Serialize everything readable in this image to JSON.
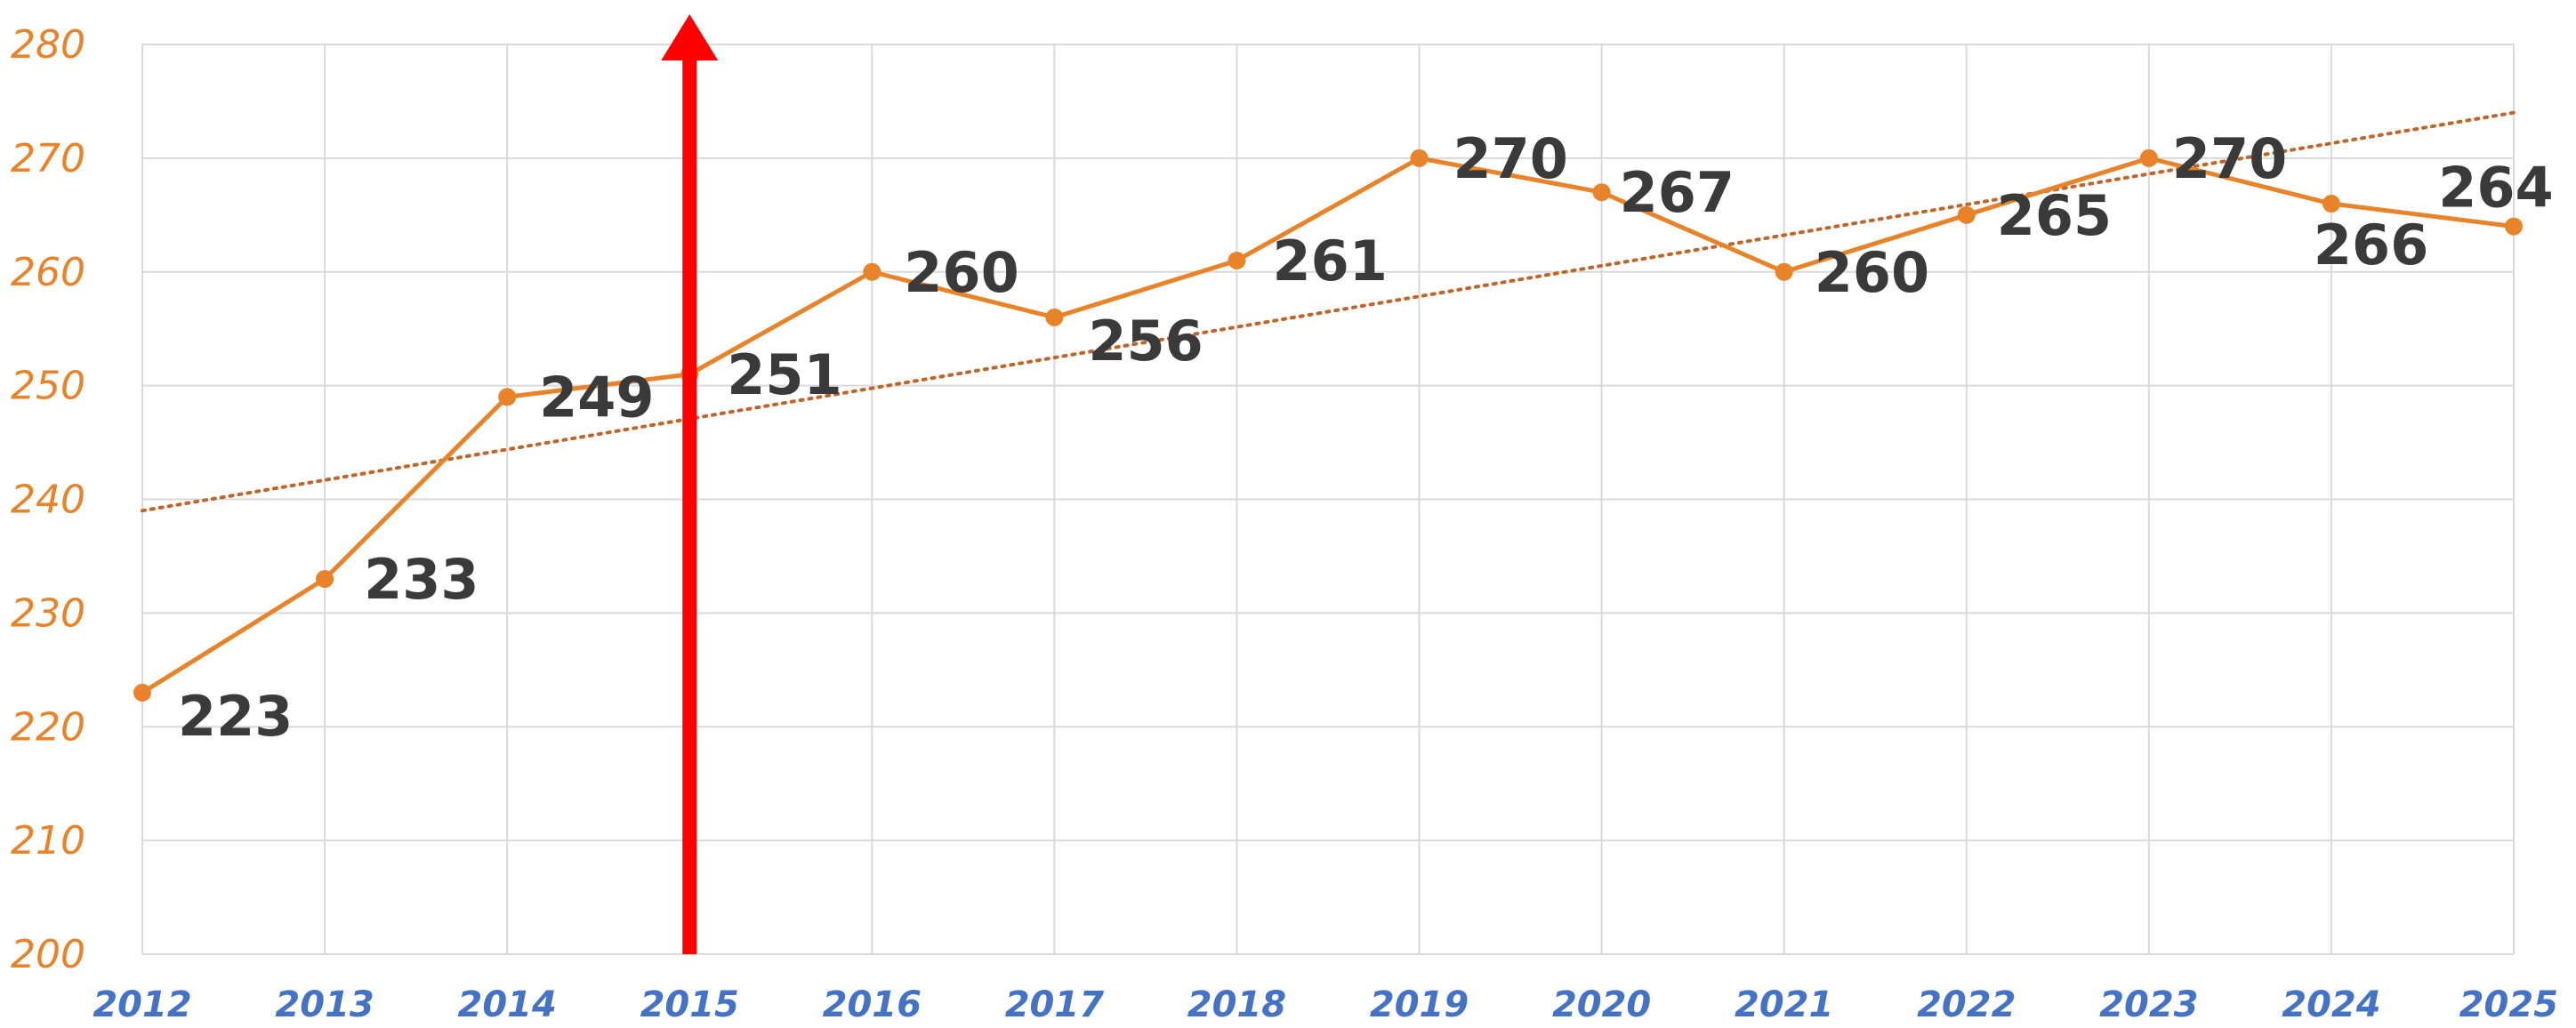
{
  "chart_data": {
    "type": "line",
    "title": "",
    "xlabel": "",
    "ylabel": "",
    "x": [
      2012,
      2013,
      2014,
      2015,
      2016,
      2017,
      2018,
      2019,
      2020,
      2021,
      2022,
      2023,
      2024,
      2025
    ],
    "x_tick_labels": [
      "2012",
      "2013",
      "2014",
      "2015",
      "2016",
      "2017",
      "2018",
      "2019",
      "2020",
      "2021",
      "2022",
      "2023",
      "2024",
      "2025"
    ],
    "series": [
      {
        "values": [
          223,
          233,
          249,
          251,
          260,
          256,
          261,
          270,
          267,
          260,
          265,
          270,
          266,
          264
        ],
        "value_labels": [
          "223",
          "233",
          "249",
          "251",
          "260",
          "256",
          "261",
          "270",
          "267",
          "260",
          "265",
          "270",
          "266",
          "264"
        ],
        "color": "#e8832a"
      }
    ],
    "trendline": {
      "type": "linear",
      "start": [
        2012,
        239
      ],
      "end": [
        2025,
        274
      ],
      "color": "#c0642a",
      "style": "dotted"
    },
    "marker": {
      "type": "vertical-arrow",
      "x": 2015,
      "color": "#ff0000"
    },
    "ylim": [
      200,
      280
    ],
    "y_tick_values": [
      200,
      210,
      220,
      230,
      240,
      250,
      260,
      270,
      280
    ],
    "y_tick_labels": [
      "200",
      "210",
      "220",
      "230",
      "240",
      "250",
      "260",
      "270",
      "280"
    ],
    "grid": true,
    "legend": "none",
    "colors": {
      "y_tick": "#e8832a",
      "x_tick": "#4472c4",
      "data_label": "#3a3a3a",
      "grid": "#d9d9d9"
    }
  }
}
